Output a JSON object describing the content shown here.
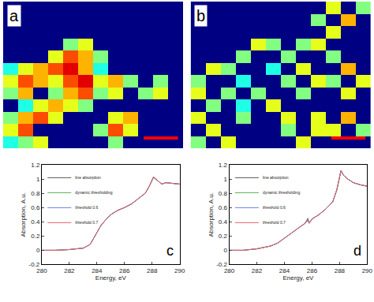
{
  "chart_data": [
    {
      "type": "heatmap",
      "annotation": "a",
      "tick_labels": false,
      "zlim": [
        0,
        1
      ],
      "cells": [
        [
          0,
          0,
          0,
          0,
          0,
          0,
          0,
          0,
          0,
          0,
          0,
          0
        ],
        [
          0,
          0,
          0,
          0,
          0,
          0,
          0,
          0,
          0,
          0,
          0,
          0
        ],
        [
          0,
          0,
          0,
          0,
          0,
          0,
          0,
          0,
          0,
          0,
          0,
          0
        ],
        [
          0,
          0,
          0,
          0,
          0.5,
          0.6,
          0,
          0,
          0,
          0,
          0,
          0
        ],
        [
          0,
          0,
          0,
          0.6,
          0.8,
          0.7,
          0.5,
          0,
          0,
          0,
          0,
          0
        ],
        [
          0.4,
          0.6,
          0.7,
          0.8,
          0.9,
          0.7,
          0.4,
          0,
          0,
          0,
          0,
          0
        ],
        [
          0.6,
          0.8,
          0.7,
          0.6,
          0.8,
          0.9,
          0.6,
          0.7,
          0.5,
          0,
          0.5,
          0
        ],
        [
          0.5,
          0.7,
          0,
          0.5,
          0.7,
          0.8,
          0.5,
          0.6,
          0,
          0.5,
          0.6,
          0
        ],
        [
          0,
          0.4,
          0.6,
          0.7,
          0.6,
          0.5,
          0,
          0,
          0,
          0,
          0,
          0
        ],
        [
          0.5,
          0.7,
          0.8,
          0.6,
          0,
          0,
          0,
          0.6,
          0.7,
          0,
          0,
          0
        ],
        [
          0.6,
          0.8,
          0,
          0,
          0,
          0,
          0.5,
          0.8,
          0.6,
          0,
          0,
          0
        ],
        [
          0.4,
          0.5,
          0.6,
          0,
          0,
          0,
          0,
          0.5,
          0,
          0,
          0,
          0
        ]
      ]
    },
    {
      "type": "heatmap",
      "annotation": "b",
      "tick_labels": false,
      "zlim": [
        0,
        1
      ],
      "cells": [
        [
          0,
          0,
          0,
          0,
          0,
          0,
          0,
          0,
          0,
          0.6,
          0,
          0.5
        ],
        [
          0,
          0,
          0,
          0,
          0,
          0,
          0,
          0,
          0.5,
          0,
          0.7,
          0
        ],
        [
          0,
          0,
          0,
          0,
          0,
          0,
          0,
          0,
          0,
          0.6,
          0,
          0
        ],
        [
          0,
          0,
          0,
          0,
          0.6,
          0.5,
          0,
          0.5,
          0.6,
          0,
          0,
          0
        ],
        [
          0,
          0,
          0,
          0.5,
          0,
          0,
          0.5,
          0,
          0,
          0.5,
          0,
          0
        ],
        [
          0,
          0.6,
          0.5,
          0,
          0,
          0.4,
          0,
          0.6,
          0,
          0,
          0.7,
          0
        ],
        [
          0.5,
          0,
          0,
          0.4,
          0,
          0,
          0.5,
          0,
          0.6,
          0.5,
          0,
          0.6
        ],
        [
          0.6,
          0,
          0.5,
          0,
          0.5,
          0,
          0,
          0.5,
          0,
          0,
          0.6,
          0
        ],
        [
          0,
          0.5,
          0,
          0.4,
          0,
          0.6,
          0,
          0,
          0,
          0,
          0,
          0
        ],
        [
          0.6,
          0,
          0,
          0.5,
          0,
          0,
          0.6,
          0,
          0.6,
          0,
          0.7,
          0
        ],
        [
          0,
          0.6,
          0,
          0,
          0,
          0,
          0.5,
          0,
          0.6,
          0.6,
          0,
          0.5
        ],
        [
          0.5,
          0,
          0.6,
          0,
          0,
          0,
          0,
          0.6,
          0,
          0,
          0,
          0
        ]
      ]
    },
    {
      "type": "line",
      "annotation": "c",
      "x_label": "Energy, eV",
      "y_label": "Absorption, A.u.",
      "xlim": [
        280,
        290
      ],
      "xticks": [
        280,
        282,
        284,
        286,
        288,
        290
      ],
      "ylim": [
        -0.2,
        1.2
      ],
      "yticks": [
        -0.2,
        0,
        0.2,
        0.4,
        0.6,
        0.8,
        1,
        1.2
      ],
      "grid": false,
      "legend": "upper left",
      "x": [
        280,
        281,
        282,
        283,
        283.5,
        284,
        284.3,
        284.6,
        285,
        285.5,
        286,
        286.5,
        287,
        287.5,
        287.8,
        288.1,
        288.4,
        288.7,
        289,
        289.5,
        290
      ],
      "series": [
        {
          "name": "line absorption",
          "color": "#555555",
          "values": [
            0,
            0,
            0.01,
            0.03,
            0.08,
            0.25,
            0.35,
            0.42,
            0.5,
            0.56,
            0.6,
            0.65,
            0.72,
            0.8,
            0.9,
            1.03,
            0.98,
            0.93,
            0.95,
            0.94,
            0.93
          ]
        },
        {
          "name": "dynamic thresholding",
          "color": "#4daf4a",
          "values": [
            0,
            0,
            0.01,
            0.03,
            0.08,
            0.25,
            0.35,
            0.42,
            0.5,
            0.56,
            0.6,
            0.65,
            0.72,
            0.8,
            0.9,
            1.02,
            0.98,
            0.93,
            0.95,
            0.94,
            0.93
          ]
        },
        {
          "name": "threshold 0.6",
          "color": "#6a7fd8",
          "values": [
            0,
            0,
            0.01,
            0.03,
            0.08,
            0.25,
            0.35,
            0.42,
            0.5,
            0.56,
            0.6,
            0.65,
            0.72,
            0.8,
            0.9,
            1.03,
            0.98,
            0.93,
            0.95,
            0.94,
            0.93
          ]
        },
        {
          "name": "threshold 0.7",
          "color": "#e8606a",
          "values": [
            0,
            0,
            0.01,
            0.03,
            0.08,
            0.25,
            0.35,
            0.42,
            0.5,
            0.56,
            0.6,
            0.65,
            0.72,
            0.8,
            0.9,
            1.03,
            0.98,
            0.93,
            0.95,
            0.94,
            0.93
          ]
        }
      ]
    },
    {
      "type": "line",
      "annotation": "d",
      "x_label": "Energy, eV",
      "y_label": "Absorption, A.u.",
      "xlim": [
        280,
        290
      ],
      "xticks": [
        280,
        282,
        284,
        286,
        288,
        290
      ],
      "ylim": [
        -0.2,
        1.2
      ],
      "yticks": [
        -0.2,
        0,
        0.2,
        0.4,
        0.6,
        0.8,
        1,
        1.2
      ],
      "grid": false,
      "legend": "upper left",
      "x": [
        280,
        281,
        282,
        283,
        283.5,
        284,
        284.5,
        285,
        285.5,
        285.7,
        285.8,
        286,
        286.5,
        287,
        287.5,
        287.8,
        288.1,
        288.3,
        288.6,
        289,
        289.5,
        290
      ],
      "series": [
        {
          "name": "line absorption",
          "color": "#555555",
          "values": [
            0,
            0,
            0.02,
            0.06,
            0.1,
            0.17,
            0.24,
            0.32,
            0.38,
            0.42,
            0.38,
            0.44,
            0.5,
            0.58,
            0.68,
            0.85,
            1.12,
            1.05,
            1.0,
            0.95,
            0.92,
            0.9
          ]
        },
        {
          "name": "dynamic thresholding",
          "color": "#4daf4a",
          "values": [
            0,
            0,
            0.02,
            0.06,
            0.1,
            0.17,
            0.24,
            0.32,
            0.38,
            0.45,
            0.38,
            0.44,
            0.5,
            0.58,
            0.68,
            0.85,
            1.11,
            1.05,
            1.0,
            0.95,
            0.92,
            0.9
          ]
        },
        {
          "name": "threshold 0.6",
          "color": "#6a7fd8",
          "values": [
            0,
            0,
            0.02,
            0.06,
            0.1,
            0.17,
            0.24,
            0.32,
            0.38,
            0.45,
            0.38,
            0.44,
            0.5,
            0.58,
            0.68,
            0.85,
            1.12,
            1.05,
            1.0,
            0.95,
            0.92,
            0.9
          ]
        },
        {
          "name": "threshold 0.7",
          "color": "#e8606a",
          "values": [
            0,
            0,
            0.02,
            0.06,
            0.1,
            0.17,
            0.24,
            0.32,
            0.38,
            0.43,
            0.38,
            0.44,
            0.5,
            0.58,
            0.68,
            0.85,
            1.12,
            1.05,
            1.0,
            0.95,
            0.92,
            0.9
          ]
        }
      ]
    }
  ]
}
